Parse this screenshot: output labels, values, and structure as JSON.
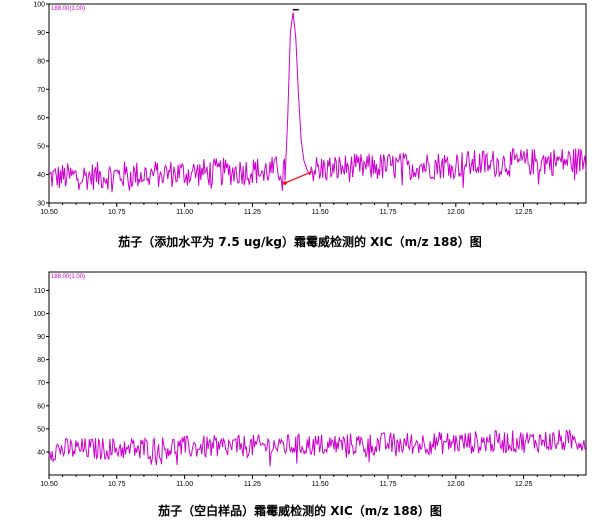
{
  "chart_data": [
    {
      "type": "line",
      "caption": "茄子（添加水平为 7.5 ug/kg）霜霉威检测的 XIC（m/z 188）图",
      "series_label": "188.00(1.00)",
      "color": "#cc00cc",
      "baseline_color": "#ff0000",
      "xlim": [
        10.5,
        12.48
      ],
      "ylim": [
        30,
        100
      ],
      "x_ticks": [
        "10.50",
        "10.75",
        "11.00",
        "11.25",
        "11.50",
        "11.75",
        "12.00",
        "12.25"
      ],
      "y_ticks": [
        "30",
        "40",
        "50",
        "60",
        "70",
        "80",
        "90",
        "100"
      ],
      "noise": {
        "base_start": 39,
        "base_end": 45,
        "amplitude": 5
      },
      "peak": {
        "x": [
          11.37,
          11.38,
          11.39,
          11.4,
          11.41,
          11.42,
          11.43,
          11.44,
          11.45,
          11.46
        ],
        "y": [
          38,
          60,
          90,
          97,
          88,
          68,
          52,
          45,
          42,
          40
        ]
      },
      "peak_baseline": {
        "x": [
          11.37,
          11.47
        ],
        "y": [
          37,
          41
        ]
      },
      "peak_marker": {
        "x": 11.41,
        "y": 98
      }
    },
    {
      "type": "line",
      "caption": "茄子（空白样品）霜霉威检测的 XIC（m/z 188）图",
      "series_label": "188.00(1.00)",
      "color": "#cc00cc",
      "xlim": [
        10.5,
        12.48
      ],
      "ylim": [
        30,
        118
      ],
      "x_ticks": [
        "10.50",
        "10.75",
        "11.00",
        "11.25",
        "11.50",
        "11.75",
        "12.00",
        "12.25"
      ],
      "y_ticks": [
        "40",
        "50",
        "60",
        "70",
        "80",
        "90",
        "100",
        "110"
      ],
      "noise": {
        "base_start": 41,
        "base_end": 45,
        "amplitude": 5
      }
    }
  ]
}
